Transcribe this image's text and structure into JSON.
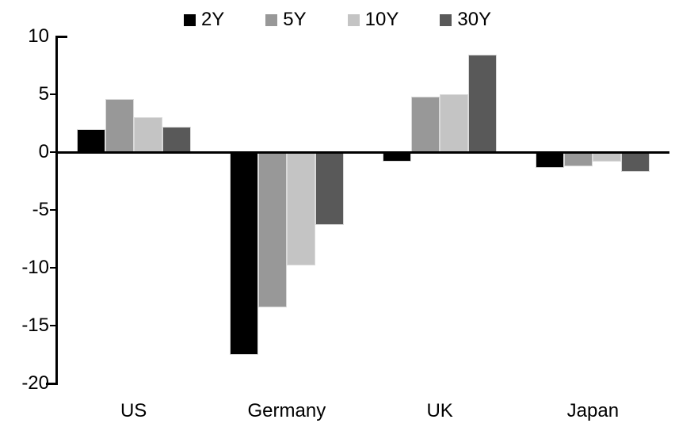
{
  "chart_data": {
    "type": "bar",
    "title": "",
    "categories": [
      "US",
      "Germany",
      "UK",
      "Japan"
    ],
    "series": [
      {
        "name": "2Y",
        "color": "#000000",
        "values": [
          2.0,
          -17.5,
          -0.8,
          -1.4
        ]
      },
      {
        "name": "5Y",
        "color": "#989898",
        "values": [
          4.6,
          -13.4,
          4.8,
          -1.2
        ]
      },
      {
        "name": "10Y",
        "color": "#c4c4c4",
        "values": [
          3.0,
          -9.8,
          5.0,
          -0.8
        ]
      },
      {
        "name": "30Y",
        "color": "#595959",
        "values": [
          2.2,
          -6.3,
          8.4,
          -1.7
        ]
      }
    ],
    "ylim": [
      -20,
      10
    ],
    "yticks": [
      10,
      5,
      0,
      -5,
      -10,
      -15,
      -20
    ],
    "xlabel": "",
    "ylabel": "",
    "legend_position": "top",
    "grid": false,
    "axis_color": "#000000",
    "background": "#ffffff"
  }
}
